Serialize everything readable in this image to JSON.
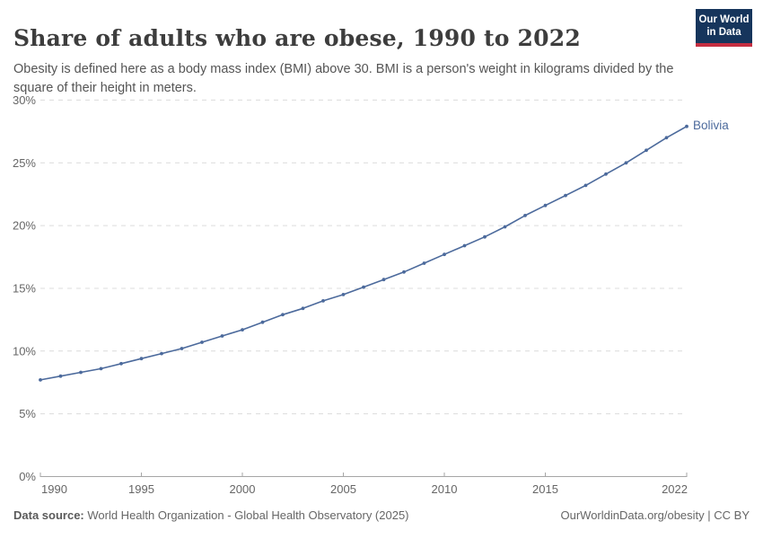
{
  "header": {
    "title": "Share of adults who are obese, 1990 to 2022",
    "subtitle": "Obesity is defined here as a body mass index (BMI) above 30. BMI is a person's weight in kilograms divided by the square of their height in meters."
  },
  "logo": {
    "line1": "Our World",
    "line2": "in Data",
    "bg_color": "#16355c",
    "accent_color": "#c52e41"
  },
  "chart_data": {
    "type": "line",
    "title": "Share of adults who are obese, 1990 to 2022",
    "xlabel": "",
    "ylabel": "",
    "xlim": [
      1990,
      2022
    ],
    "ylim": [
      0,
      30
    ],
    "grid": "horizontal-dashed",
    "legend_position": "end-of-line-label",
    "x_ticks": [
      1990,
      1995,
      2000,
      2005,
      2010,
      2015,
      2022
    ],
    "x_tick_labels": [
      "1990",
      "1995",
      "2000",
      "2005",
      "2010",
      "2015",
      "2022"
    ],
    "y_ticks": [
      0,
      5,
      10,
      15,
      20,
      25,
      30
    ],
    "y_tick_labels": [
      "0%",
      "5%",
      "10%",
      "15%",
      "20%",
      "25%",
      "30%"
    ],
    "series": [
      {
        "name": "Bolivia",
        "color": "#4C6A9C",
        "x": [
          1990,
          1991,
          1992,
          1993,
          1994,
          1995,
          1996,
          1997,
          1998,
          1999,
          2000,
          2001,
          2002,
          2003,
          2004,
          2005,
          2006,
          2007,
          2008,
          2009,
          2010,
          2011,
          2012,
          2013,
          2014,
          2015,
          2016,
          2017,
          2018,
          2019,
          2020,
          2021,
          2022
        ],
        "values": [
          7.7,
          8.0,
          8.3,
          8.6,
          9.0,
          9.4,
          9.8,
          10.2,
          10.7,
          11.2,
          11.7,
          12.3,
          12.9,
          13.4,
          14.0,
          14.5,
          15.1,
          15.7,
          16.3,
          17.0,
          17.7,
          18.4,
          19.1,
          19.9,
          20.8,
          21.6,
          22.4,
          23.2,
          24.1,
          25.0,
          26.0,
          27.0,
          27.9
        ]
      }
    ],
    "colors": {
      "gridline": "#dcdcdc",
      "axis_line": "#a6a6a6",
      "tick_text": "#666666"
    }
  },
  "footer": {
    "datasource_label": "Data source:",
    "datasource_text": " World Health Organization - Global Health Observatory (2025)",
    "right_text": "OurWorldinData.org/obesity | CC BY"
  }
}
